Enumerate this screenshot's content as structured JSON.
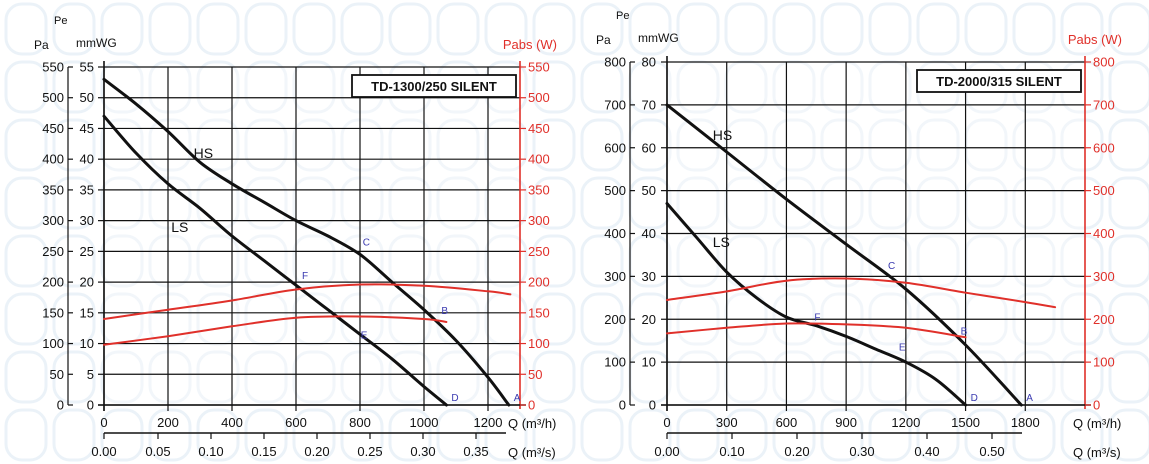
{
  "colors": {
    "grid": "#111111",
    "axis_left": "#111111",
    "power": "#e0302a",
    "curve": "#111111",
    "point_label": "#3a3ab0",
    "background_pattern": "#dbe8f3"
  },
  "chart_data": [
    {
      "type": "line",
      "title": "TD-1300/250 SILENT",
      "pa_axis": {
        "label": "Pa",
        "ylim": [
          0,
          550
        ],
        "ticks": [
          0,
          50,
          100,
          150,
          200,
          250,
          300,
          350,
          400,
          450,
          500,
          550
        ]
      },
      "mmwg_axis": {
        "label_top": "Pe",
        "label": "mmWG",
        "ylim": [
          0,
          55
        ],
        "ticks": [
          0,
          5,
          10,
          15,
          20,
          25,
          30,
          35,
          40,
          45,
          50,
          55
        ]
      },
      "power_axis": {
        "label": "Pabs (W)",
        "ylim": [
          0,
          550
        ],
        "ticks": [
          0,
          50,
          100,
          150,
          200,
          250,
          300,
          350,
          400,
          450,
          500,
          550
        ]
      },
      "x_axis": {
        "label": "Q (m³/h)",
        "xlim": [
          0,
          1300
        ],
        "ticks": [
          0,
          200,
          400,
          600,
          800,
          1000,
          1200
        ]
      },
      "x2_axis": {
        "label": "Q (m³/s)",
        "ticks": [
          "0.00",
          "0.05",
          "0.10",
          "0.15",
          "0.20",
          "0.25",
          "0.30",
          "0.35"
        ]
      },
      "series": [
        {
          "name": "HS",
          "kind": "pressure",
          "x": [
            0,
            100,
            200,
            300,
            400,
            500,
            600,
            700,
            800,
            900,
            1000,
            1100,
            1200,
            1265
          ],
          "y": [
            53,
            49,
            44.5,
            39.5,
            36,
            33,
            30,
            27.5,
            24.5,
            20,
            15.5,
            10.5,
            4.5,
            0
          ]
        },
        {
          "name": "LS",
          "kind": "pressure",
          "x": [
            0,
            100,
            200,
            300,
            400,
            500,
            600,
            700,
            800,
            900,
            1000,
            1070
          ],
          "y": [
            47,
            41,
            36,
            32,
            27.5,
            23.5,
            19.5,
            15.5,
            11.5,
            7.5,
            3,
            0
          ]
        },
        {
          "name": "",
          "kind": "power",
          "x": [
            0,
            200,
            400,
            600,
            800,
            1000,
            1200,
            1270
          ],
          "y": [
            140,
            155,
            170,
            188,
            196,
            194,
            185,
            180
          ]
        },
        {
          "name": "",
          "kind": "power",
          "x": [
            0,
            200,
            400,
            600,
            800,
            1000,
            1070
          ],
          "y": [
            98,
            112,
            128,
            142,
            144,
            140,
            135
          ]
        }
      ],
      "points": [
        {
          "label": "A",
          "x": 1265,
          "y": 0,
          "dx": 5,
          "dy": -4
        },
        {
          "label": "B",
          "x": 1045,
          "y": 14.5,
          "dx": 3,
          "dy": -2
        },
        {
          "label": "C",
          "x": 790,
          "y": 25.5,
          "dx": 6,
          "dy": -3
        },
        {
          "label": "D",
          "x": 1070,
          "y": 0,
          "dx": 5,
          "dy": -4
        },
        {
          "label": "E",
          "x": 790,
          "y": 10.5,
          "dx": 4,
          "dy": -2
        },
        {
          "label": "F",
          "x": 600,
          "y": 20,
          "dx": 6,
          "dy": -3
        }
      ],
      "curve_labels": [
        {
          "text": "HS",
          "x": 280,
          "y": 41
        },
        {
          "text": "LS",
          "x": 210,
          "y": 29
        }
      ]
    },
    {
      "type": "line",
      "title": "TD-2000/315 SILENT",
      "pa_axis": {
        "label": "Pa",
        "ylim": [
          0,
          800
        ],
        "ticks": [
          0,
          100,
          200,
          300,
          400,
          500,
          600,
          700,
          800
        ]
      },
      "mmwg_axis": {
        "label_top": "Pe",
        "label": "mmWG",
        "ylim": [
          0,
          80
        ],
        "ticks": [
          0,
          10,
          20,
          30,
          40,
          50,
          60,
          70,
          80
        ]
      },
      "power_axis": {
        "label": "Pabs (W)",
        "ylim": [
          0,
          800
        ],
        "ticks": [
          0,
          100,
          200,
          300,
          400,
          500,
          600,
          700,
          800
        ]
      },
      "x_axis": {
        "label": "Q (m³/h)",
        "xlim": [
          0,
          2100
        ],
        "ticks": [
          0,
          300,
          600,
          900,
          1200,
          1500,
          1800
        ]
      },
      "x2_axis": {
        "label": "Q (m³/s)",
        "ticks": [
          "0.00",
          "0.10",
          "0.20",
          "0.30",
          "0.40",
          "0.50"
        ]
      },
      "series": [
        {
          "name": "HS",
          "kind": "pressure",
          "x": [
            0,
            300,
            600,
            900,
            1200,
            1500,
            1780
          ],
          "y": [
            70,
            59,
            48,
            37.5,
            27,
            14,
            0
          ]
        },
        {
          "name": "LS",
          "kind": "pressure",
          "x": [
            0,
            150,
            300,
            450,
            600,
            750,
            900,
            1050,
            1200,
            1350,
            1500
          ],
          "y": [
            47,
            39,
            31,
            25,
            20.5,
            18.5,
            16,
            13,
            10,
            6,
            0
          ]
        },
        {
          "name": "",
          "kind": "power",
          "x": [
            0,
            300,
            600,
            900,
            1200,
            1500,
            1800,
            1950
          ],
          "y": [
            245,
            265,
            290,
            295,
            285,
            262,
            240,
            228
          ]
        },
        {
          "name": "",
          "kind": "power",
          "x": [
            0,
            300,
            600,
            900,
            1200,
            1500
          ],
          "y": [
            167,
            180,
            190,
            188,
            180,
            158
          ]
        }
      ],
      "points": [
        {
          "label": "A",
          "x": 1780,
          "y": 0,
          "dx": 5,
          "dy": -4
        },
        {
          "label": "B",
          "x": 1460,
          "y": 16,
          "dx": 3,
          "dy": -2
        },
        {
          "label": "C",
          "x": 1080,
          "y": 31,
          "dx": 6,
          "dy": -3
        },
        {
          "label": "D",
          "x": 1500,
          "y": 0,
          "dx": 5,
          "dy": -4
        },
        {
          "label": "E",
          "x": 1150,
          "y": 12,
          "dx": 3,
          "dy": -3
        },
        {
          "label": "F",
          "x": 710,
          "y": 19,
          "dx": 6,
          "dy": -3
        }
      ],
      "curve_labels": [
        {
          "text": "HS",
          "x": 230,
          "y": 63
        },
        {
          "text": "LS",
          "x": 230,
          "y": 38
        }
      ]
    }
  ]
}
